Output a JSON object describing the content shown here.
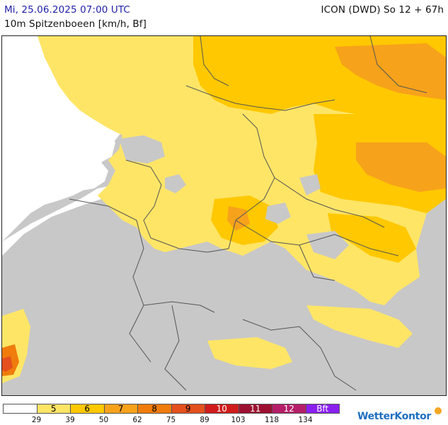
{
  "header": {
    "datetime": "Mi, 25.06.2025 07:00 UTC",
    "model_run": "ICON (DWD) So 12 + 67h",
    "parameter": "10m Spitzenboeen [km/h, Bf]"
  },
  "map": {
    "region": "Central Europe",
    "background_color": "#c8c8c8",
    "sea_color": "#ffffff",
    "border_color": "#555555",
    "dominant_gust_class": "5-6 Bf"
  },
  "legend": {
    "classes": [
      {
        "label": "",
        "color": "#ffffff"
      },
      {
        "label": "5",
        "color": "#ffe566"
      },
      {
        "label": "6",
        "color": "#ffc800"
      },
      {
        "label": "7",
        "color": "#f7a21b"
      },
      {
        "label": "8",
        "color": "#ef7c0c"
      },
      {
        "label": "9",
        "color": "#e4501e"
      },
      {
        "label": "10",
        "color": "#d01b1b"
      },
      {
        "label": "11",
        "color": "#9b1030"
      },
      {
        "label": "12",
        "color": "#b51e68"
      },
      {
        "label": "Bft",
        "color": "#8a1ff0"
      }
    ],
    "ticks": [
      "29",
      "39",
      "50",
      "62",
      "75",
      "89",
      "103",
      "118",
      "134"
    ]
  },
  "brand": {
    "name": "WetterKontor"
  }
}
